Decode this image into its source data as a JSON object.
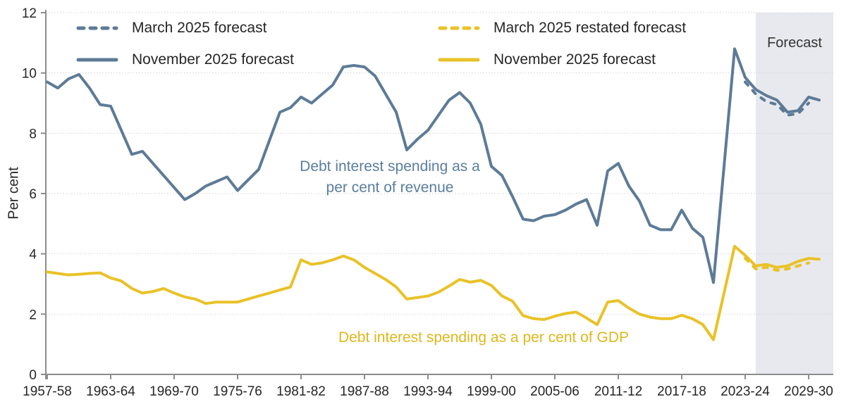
{
  "y_axis_title": "Per cent",
  "legend": {
    "items": [
      {
        "label": "March 2025 forecast",
        "style": "dashed",
        "color": "#5d7b97"
      },
      {
        "label": "November 2025 forecast",
        "style": "solid",
        "color": "#5d7b97"
      },
      {
        "label": "March 2025 restated forecast",
        "style": "dashed",
        "color": "#e9c227"
      },
      {
        "label": "November 2025 forecast",
        "style": "solid",
        "color": "#e9c227"
      }
    ]
  },
  "annotations": {
    "revenue_line1": "Debt interest spending as a",
    "revenue_line2": "per cent of revenue",
    "gdp_label": "Debt interest spending as a per cent of GDP",
    "forecast_label": "Forecast"
  },
  "colors": {
    "revenue_blue": "#5d7b97",
    "gdp_yellow": "#e9c227",
    "revenue_text": "#5a7e9f",
    "gdp_text": "#dfb71d",
    "forecast_band": "#e8e9ee",
    "grid": "#d2d2d2",
    "axis": "#8c8c8c",
    "tick_text": "#262626"
  },
  "chart_data": {
    "type": "line",
    "title": "",
    "xlabel": "",
    "ylabel": "Per cent",
    "ylim": [
      0,
      12
    ],
    "y_ticks": [
      0,
      2,
      4,
      6,
      8,
      10,
      12
    ],
    "x_tick_labels": [
      "1957-58",
      "1963-64",
      "1969-70",
      "1975-76",
      "1981-82",
      "1987-88",
      "1993-94",
      "1999-00",
      "2005-06",
      "2011-12",
      "2017-18",
      "2023-24",
      "2029-30"
    ],
    "x_start_year": "1957-58",
    "x_end_year": "2030-31",
    "grid": "horizontal-dotted",
    "legend_position": "top-inside",
    "forecast_band": {
      "start_year": "2024-25",
      "end_year": "2030-31",
      "label": "Forecast"
    },
    "series": [
      {
        "name": "March 2025 forecast (debt interest as per cent of revenue)",
        "style": "dashed",
        "color": "#5d7b97",
        "start_index": 66,
        "start_year": "2023-24",
        "values": [
          9.7,
          9.3,
          9.05,
          8.95,
          8.6,
          8.65,
          9.0
        ]
      },
      {
        "name": "March 2025 restated forecast (debt interest as per cent of GDP)",
        "style": "dashed",
        "color": "#e9c227",
        "start_index": 66,
        "start_year": "2023-24",
        "values": [
          3.85,
          3.5,
          3.55,
          3.45,
          3.5,
          3.6,
          3.7
        ]
      },
      {
        "name": "November 2025 forecast (debt interest as per cent of revenue)",
        "style": "solid",
        "color": "#5d7b97",
        "start_index": 0,
        "start_year": "1957-58",
        "values": [
          9.7,
          9.5,
          9.8,
          9.95,
          9.5,
          8.95,
          8.9,
          8.1,
          7.3,
          7.4,
          7.0,
          6.6,
          6.2,
          5.8,
          6.0,
          6.25,
          6.4,
          6.55,
          6.1,
          6.45,
          6.8,
          7.75,
          8.7,
          8.85,
          9.2,
          9.0,
          9.3,
          9.6,
          10.2,
          10.25,
          10.2,
          9.9,
          9.3,
          8.7,
          7.45,
          7.8,
          8.1,
          8.6,
          9.1,
          9.35,
          9.0,
          8.3,
          6.9,
          6.6,
          5.9,
          5.15,
          5.1,
          5.25,
          5.3,
          5.45,
          5.65,
          5.8,
          4.95,
          6.75,
          7.0,
          6.25,
          5.75,
          4.95,
          4.8,
          4.8,
          5.45,
          4.85,
          4.55,
          3.05,
          6.9,
          10.8,
          9.85,
          9.45,
          9.25,
          9.1,
          8.7,
          8.75,
          9.2,
          9.1
        ]
      },
      {
        "name": "November 2025 forecast (debt interest as per cent of GDP)",
        "style": "solid",
        "color": "#e9c227",
        "start_index": 0,
        "start_year": "1957-58",
        "values": [
          3.4,
          3.35,
          3.3,
          3.32,
          3.35,
          3.37,
          3.2,
          3.1,
          2.85,
          2.7,
          2.75,
          2.85,
          2.7,
          2.57,
          2.5,
          2.35,
          2.4,
          2.4,
          2.4,
          2.5,
          2.6,
          2.7,
          2.8,
          2.9,
          3.8,
          3.65,
          3.7,
          3.8,
          3.93,
          3.8,
          3.55,
          3.35,
          3.15,
          2.9,
          2.5,
          2.55,
          2.6,
          2.73,
          2.93,
          3.15,
          3.06,
          3.12,
          2.95,
          2.6,
          2.43,
          1.95,
          1.85,
          1.82,
          1.93,
          2.02,
          2.07,
          1.87,
          1.65,
          2.4,
          2.45,
          2.2,
          2.0,
          1.9,
          1.85,
          1.85,
          1.96,
          1.85,
          1.65,
          1.15,
          2.7,
          4.25,
          3.95,
          3.6,
          3.65,
          3.55,
          3.6,
          3.75,
          3.85,
          3.82
        ]
      }
    ]
  }
}
